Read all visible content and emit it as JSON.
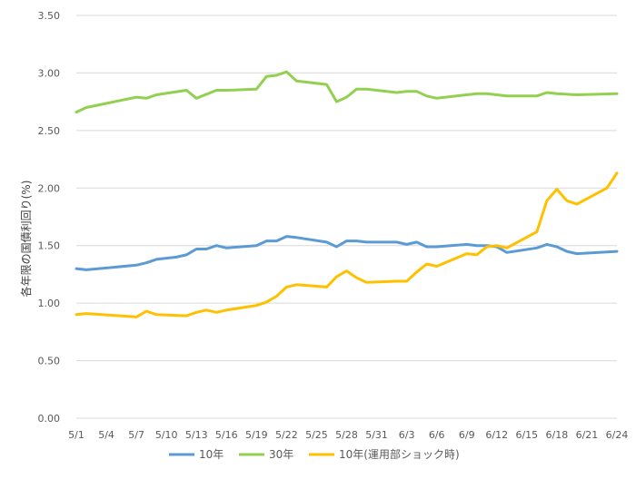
{
  "chart_data": {
    "type": "line",
    "ylabel": "各年限の国債利回り(%)",
    "ylim": [
      0,
      3.5
    ],
    "yticks": [
      "0.00",
      "0.50",
      "1.00",
      "1.50",
      "2.00",
      "2.50",
      "3.00",
      "3.50"
    ],
    "grid": true,
    "legend_position": "bottom",
    "x": [
      "5/1",
      "5/2",
      "5/3",
      "5/4",
      "5/5",
      "5/6",
      "5/7",
      "5/8",
      "5/9",
      "5/10",
      "5/11",
      "5/12",
      "5/13",
      "5/14",
      "5/15",
      "5/16",
      "5/17",
      "5/18",
      "5/19",
      "5/20",
      "5/21",
      "5/22",
      "5/23",
      "5/24",
      "5/25",
      "5/26",
      "5/27",
      "5/28",
      "5/29",
      "5/30",
      "5/31",
      "6/1",
      "6/2",
      "6/3",
      "6/4",
      "6/5",
      "6/6",
      "6/7",
      "6/8",
      "6/9",
      "6/10",
      "6/11",
      "6/12",
      "6/13",
      "6/14",
      "6/15",
      "6/16",
      "6/17",
      "6/18",
      "6/19",
      "6/20",
      "6/21",
      "6/22",
      "6/23",
      "6/24"
    ],
    "xtick_labels": [
      "5/1",
      "5/4",
      "5/7",
      "5/10",
      "5/13",
      "5/16",
      "5/19",
      "5/22",
      "5/25",
      "5/28",
      "5/31",
      "6/3",
      "6/6",
      "6/9",
      "6/12",
      "6/15",
      "6/18",
      "6/21",
      "6/24"
    ],
    "series": [
      {
        "name": "10年",
        "color": "#5B9BD5",
        "points": [
          [
            "5/1",
            1.3
          ],
          [
            "5/2",
            1.29
          ],
          [
            "5/7",
            1.33
          ],
          [
            "5/8",
            1.35
          ],
          [
            "5/9",
            1.38
          ],
          [
            "5/11",
            1.4
          ],
          [
            "5/12",
            1.42
          ],
          [
            "5/13",
            1.47
          ],
          [
            "5/14",
            1.47
          ],
          [
            "5/15",
            1.5
          ],
          [
            "5/16",
            1.48
          ],
          [
            "5/19",
            1.5
          ],
          [
            "5/20",
            1.54
          ],
          [
            "5/21",
            1.54
          ],
          [
            "5/22",
            1.58
          ],
          [
            "5/23",
            1.57
          ],
          [
            "5/26",
            1.53
          ],
          [
            "5/27",
            1.49
          ],
          [
            "5/28",
            1.54
          ],
          [
            "5/29",
            1.54
          ],
          [
            "5/30",
            1.53
          ],
          [
            "6/2",
            1.53
          ],
          [
            "6/3",
            1.51
          ],
          [
            "6/4",
            1.53
          ],
          [
            "6/5",
            1.49
          ],
          [
            "6/6",
            1.49
          ],
          [
            "6/9",
            1.51
          ],
          [
            "6/10",
            1.5
          ],
          [
            "6/11",
            1.5
          ],
          [
            "6/12",
            1.49
          ],
          [
            "6/13",
            1.44
          ],
          [
            "6/16",
            1.48
          ],
          [
            "6/17",
            1.51
          ],
          [
            "6/18",
            1.49
          ],
          [
            "6/19",
            1.45
          ],
          [
            "6/20",
            1.43
          ],
          [
            "6/24",
            1.45
          ]
        ]
      },
      {
        "name": "30年",
        "color": "#92D050",
        "points": [
          [
            "5/1",
            2.66
          ],
          [
            "5/2",
            2.7
          ],
          [
            "5/7",
            2.79
          ],
          [
            "5/8",
            2.78
          ],
          [
            "5/9",
            2.81
          ],
          [
            "5/12",
            2.85
          ],
          [
            "5/13",
            2.78
          ],
          [
            "5/15",
            2.85
          ],
          [
            "5/16",
            2.85
          ],
          [
            "5/19",
            2.86
          ],
          [
            "5/20",
            2.97
          ],
          [
            "5/21",
            2.98
          ],
          [
            "5/22",
            3.01
          ],
          [
            "5/23",
            2.93
          ],
          [
            "5/26",
            2.9
          ],
          [
            "5/27",
            2.75
          ],
          [
            "5/28",
            2.79
          ],
          [
            "5/29",
            2.86
          ],
          [
            "5/30",
            2.86
          ],
          [
            "6/2",
            2.83
          ],
          [
            "6/3",
            2.84
          ],
          [
            "6/4",
            2.84
          ],
          [
            "6/5",
            2.8
          ],
          [
            "6/6",
            2.78
          ],
          [
            "6/9",
            2.81
          ],
          [
            "6/10",
            2.82
          ],
          [
            "6/11",
            2.82
          ],
          [
            "6/12",
            2.81
          ],
          [
            "6/13",
            2.8
          ],
          [
            "6/16",
            2.8
          ],
          [
            "6/17",
            2.83
          ],
          [
            "6/18",
            2.82
          ],
          [
            "6/20",
            2.81
          ],
          [
            "6/24",
            2.82
          ]
        ]
      },
      {
        "name": "10年(運用部ショック時)",
        "color": "#FFC000",
        "points": [
          [
            "5/1",
            0.9
          ],
          [
            "5/2",
            0.91
          ],
          [
            "5/7",
            0.88
          ],
          [
            "5/8",
            0.93
          ],
          [
            "5/9",
            0.9
          ],
          [
            "5/12",
            0.89
          ],
          [
            "5/13",
            0.92
          ],
          [
            "5/14",
            0.94
          ],
          [
            "5/15",
            0.92
          ],
          [
            "5/16",
            0.94
          ],
          [
            "5/19",
            0.98
          ],
          [
            "5/20",
            1.01
          ],
          [
            "5/21",
            1.06
          ],
          [
            "5/22",
            1.14
          ],
          [
            "5/23",
            1.16
          ],
          [
            "5/26",
            1.14
          ],
          [
            "5/27",
            1.23
          ],
          [
            "5/28",
            1.28
          ],
          [
            "5/29",
            1.22
          ],
          [
            "5/30",
            1.18
          ],
          [
            "6/2",
            1.19
          ],
          [
            "6/3",
            1.19
          ],
          [
            "6/4",
            1.27
          ],
          [
            "6/5",
            1.34
          ],
          [
            "6/6",
            1.32
          ],
          [
            "6/9",
            1.43
          ],
          [
            "6/10",
            1.42
          ],
          [
            "6/11",
            1.49
          ],
          [
            "6/12",
            1.5
          ],
          [
            "6/13",
            1.48
          ],
          [
            "6/16",
            1.62
          ],
          [
            "6/17",
            1.89
          ],
          [
            "6/18",
            1.99
          ],
          [
            "6/19",
            1.89
          ],
          [
            "6/20",
            1.86
          ],
          [
            "6/23",
            2.0
          ],
          [
            "6/24",
            2.13
          ]
        ]
      }
    ]
  }
}
